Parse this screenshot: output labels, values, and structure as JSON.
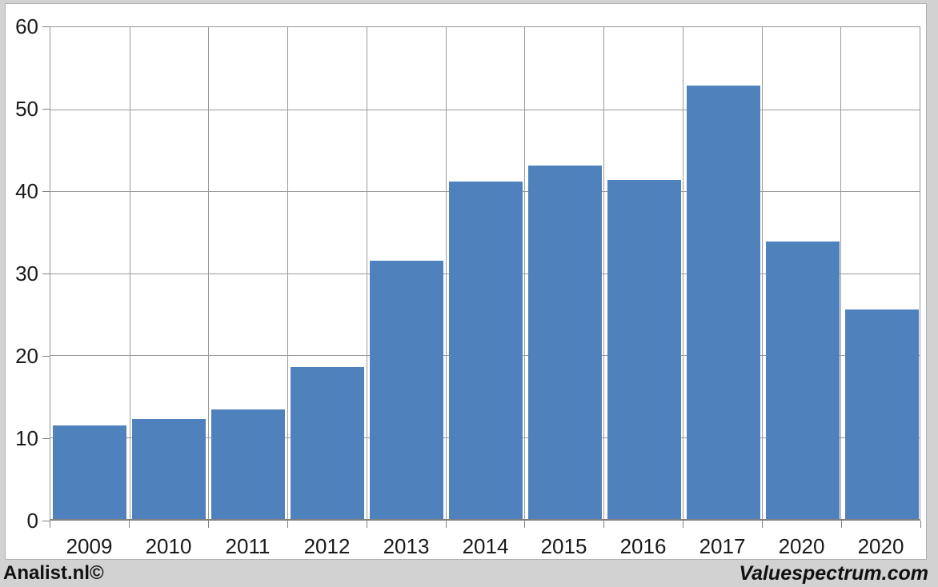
{
  "chart_data": {
    "type": "bar",
    "categories": [
      "2009",
      "2010",
      "2011",
      "2012",
      "2013",
      "2014",
      "2015",
      "2016",
      "2017",
      "2020",
      "2020"
    ],
    "values": [
      11.4,
      12.2,
      13.4,
      18.5,
      31.5,
      41.2,
      43.1,
      41.4,
      52.9,
      33.9,
      25.6
    ],
    "title": "",
    "xlabel": "",
    "ylabel": "",
    "ylim": [
      0,
      60
    ],
    "yticks": [
      0,
      10,
      20,
      30,
      40,
      50,
      60
    ],
    "grid": true,
    "legend_position": "none",
    "bar_color": "#4f81bd",
    "gridline_color": "#9a9a9a",
    "axis_color": "#808080",
    "label_color": "#1a1a1a"
  },
  "footer": {
    "left_brand": "Analist.nl©",
    "right_brand": "Valuespectrum.com"
  }
}
